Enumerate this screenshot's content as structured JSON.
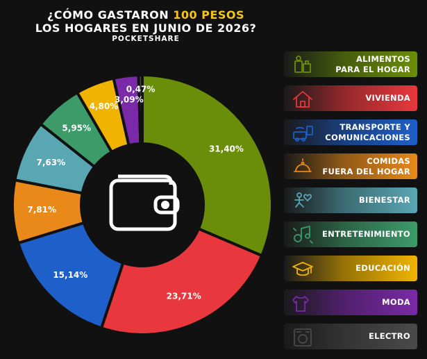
{
  "header": {
    "title_part1": "¿CÓMO GASTARON ",
    "title_highlight": "100 PESOS",
    "title_line2": "LOS HOGARES EN JUNIO DE 2026?",
    "source": "POCKETSHARE",
    "highlight_color": "#f5c518"
  },
  "center_icon": "wallet-icon",
  "chart_data": {
    "type": "pie",
    "title": "¿CÓMO GASTARON 100 PESOS LOS HOGARES EN JUNIO DE 2026?",
    "unit": "%",
    "start": "top, clockwise",
    "slices": [
      {
        "label": "ALIMENTOS\nPARA EL HOGAR",
        "value": 31.4,
        "value_label": "31,40%",
        "color": "#6b8e0a",
        "icon": "groceries-icon"
      },
      {
        "label": "VIVIENDA",
        "value": 23.71,
        "value_label": "23,71%",
        "color": "#e8383d",
        "icon": "house-icon"
      },
      {
        "label": "TRANSPORTE Y\nCOMUNICACIONES",
        "value": 15.14,
        "value_label": "15,14%",
        "color": "#1f5fc9",
        "icon": "transport-icon"
      },
      {
        "label": "COMIDAS\nFUERA DEL HOGAR",
        "value": 7.81,
        "value_label": "7,81%",
        "color": "#e8891a",
        "icon": "dining-icon"
      },
      {
        "label": "BIENESTAR",
        "value": 7.63,
        "value_label": "7,63%",
        "color": "#5aa7b4",
        "icon": "wellbeing-icon"
      },
      {
        "label": "ENTRETENIMIENTO",
        "value": 5.95,
        "value_label": "5,95%",
        "color": "#3d9b6a",
        "icon": "entertainment-icon"
      },
      {
        "label": "EDUCACIÓN",
        "value": 4.8,
        "value_label": "4,80%",
        "color": "#f0b400",
        "icon": "graduation-cap-icon"
      },
      {
        "label": "MODA",
        "value": 3.09,
        "value_label": "3,09%",
        "color": "#7a2aa8",
        "icon": "clothing-icon"
      },
      {
        "label": "ELECTRO",
        "value": 0.47,
        "value_label": "0,47%",
        "color": "#4a4a4a",
        "icon": "appliance-icon"
      }
    ]
  }
}
